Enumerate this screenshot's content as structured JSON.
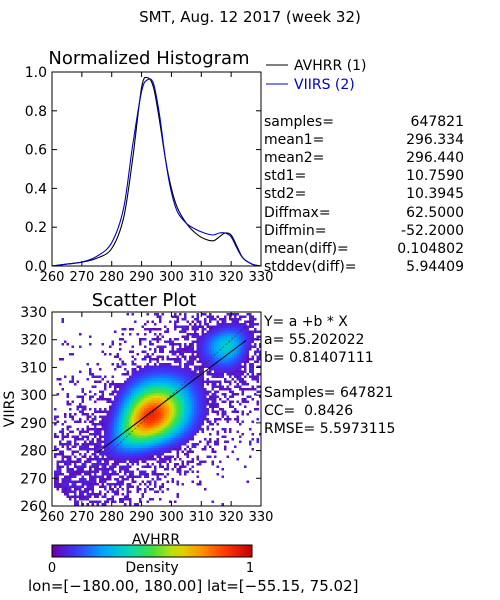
{
  "header": {
    "title": "SMT,  Aug. 12 2017 (week 32)"
  },
  "histogram": {
    "title": "Normalized Histogram",
    "legend": [
      {
        "label": "AVHRR (1)",
        "color": "#000000"
      },
      {
        "label": "VIIRS (2)",
        "color": "#0000cc"
      }
    ]
  },
  "stats": [
    {
      "key": "samples=",
      "value": "647821"
    },
    {
      "key": "mean1=",
      "value": "296.334"
    },
    {
      "key": "mean2=",
      "value": "296.440"
    },
    {
      "key": "std1=",
      "value": "10.7590"
    },
    {
      "key": "std2=",
      "value": "10.3945"
    },
    {
      "key": "Diffmax=",
      "value": "62.5000"
    },
    {
      "key": "Diffmin=",
      "value": "-52.2000"
    },
    {
      "key": "mean(diff)=",
      "value": "0.104802"
    },
    {
      "key": "stddev(diff)=",
      "value": "5.94409"
    }
  ],
  "scatter": {
    "title": "Scatter Plot",
    "fit_line1": "Y= a +b * X",
    "fit_a": "a= 55.202022",
    "fit_b": "b= 0.81407111",
    "samples": "Samples= 647821",
    "cc": "CC=  0.8426",
    "rmse": "RMSE= 5.5973115"
  },
  "colorbar": {
    "label": "Density",
    "min": "0",
    "max": "1"
  },
  "footer": {
    "text": "lon=[−180.00, 180.00] lat=[−55.15, 75.02]"
  },
  "chart_data": [
    {
      "type": "line",
      "title": "Normalized Histogram",
      "x": [
        260,
        265,
        270,
        275,
        280,
        284,
        287,
        290,
        292,
        294,
        296,
        298,
        300,
        302,
        305,
        308,
        311,
        314,
        316,
        318,
        320,
        322,
        324,
        327,
        330
      ],
      "series": [
        {
          "name": "AVHRR (1)",
          "color": "#000000",
          "values": [
            0.0,
            0.01,
            0.02,
            0.04,
            0.09,
            0.25,
            0.55,
            0.92,
            0.97,
            0.92,
            0.75,
            0.55,
            0.4,
            0.3,
            0.22,
            0.17,
            0.14,
            0.13,
            0.15,
            0.17,
            0.16,
            0.1,
            0.04,
            0.01,
            0.0
          ]
        },
        {
          "name": "VIIRS (2)",
          "color": "#0000cc",
          "values": [
            0.0,
            0.01,
            0.02,
            0.05,
            0.12,
            0.3,
            0.62,
            0.9,
            0.96,
            0.94,
            0.78,
            0.55,
            0.38,
            0.28,
            0.22,
            0.19,
            0.17,
            0.16,
            0.17,
            0.17,
            0.15,
            0.09,
            0.04,
            0.01,
            0.0
          ]
        }
      ],
      "xlim": [
        260,
        330
      ],
      "ylim": [
        0.0,
        1.0
      ],
      "x_ticks": [
        "260",
        "270",
        "280",
        "290",
        "300",
        "310",
        "320",
        "330"
      ],
      "y_ticks": [
        "0.0",
        "0.2",
        "0.4",
        "0.6",
        "0.8",
        "1.0"
      ]
    },
    {
      "type": "heatmap",
      "title": "Scatter Plot",
      "xlabel": "AVHRR",
      "ylabel": "VIIRS",
      "xlim": [
        260,
        330
      ],
      "ylim": [
        260,
        330
      ],
      "x_ticks": [
        "260",
        "270",
        "280",
        "290",
        "300",
        "310",
        "320",
        "330"
      ],
      "y_ticks": [
        "260",
        "270",
        "280",
        "290",
        "300",
        "310",
        "320",
        "330"
      ],
      "fit": {
        "a": 55.202022,
        "b": 0.81407111
      },
      "colorscale": [
        "#6a00a8",
        "#3a3aff",
        "#00a0ff",
        "#00d8c0",
        "#40e040",
        "#d8e000",
        "#ff9000",
        "#ff3000",
        "#c00000"
      ],
      "colorbar_range": [
        0,
        1
      ]
    }
  ]
}
